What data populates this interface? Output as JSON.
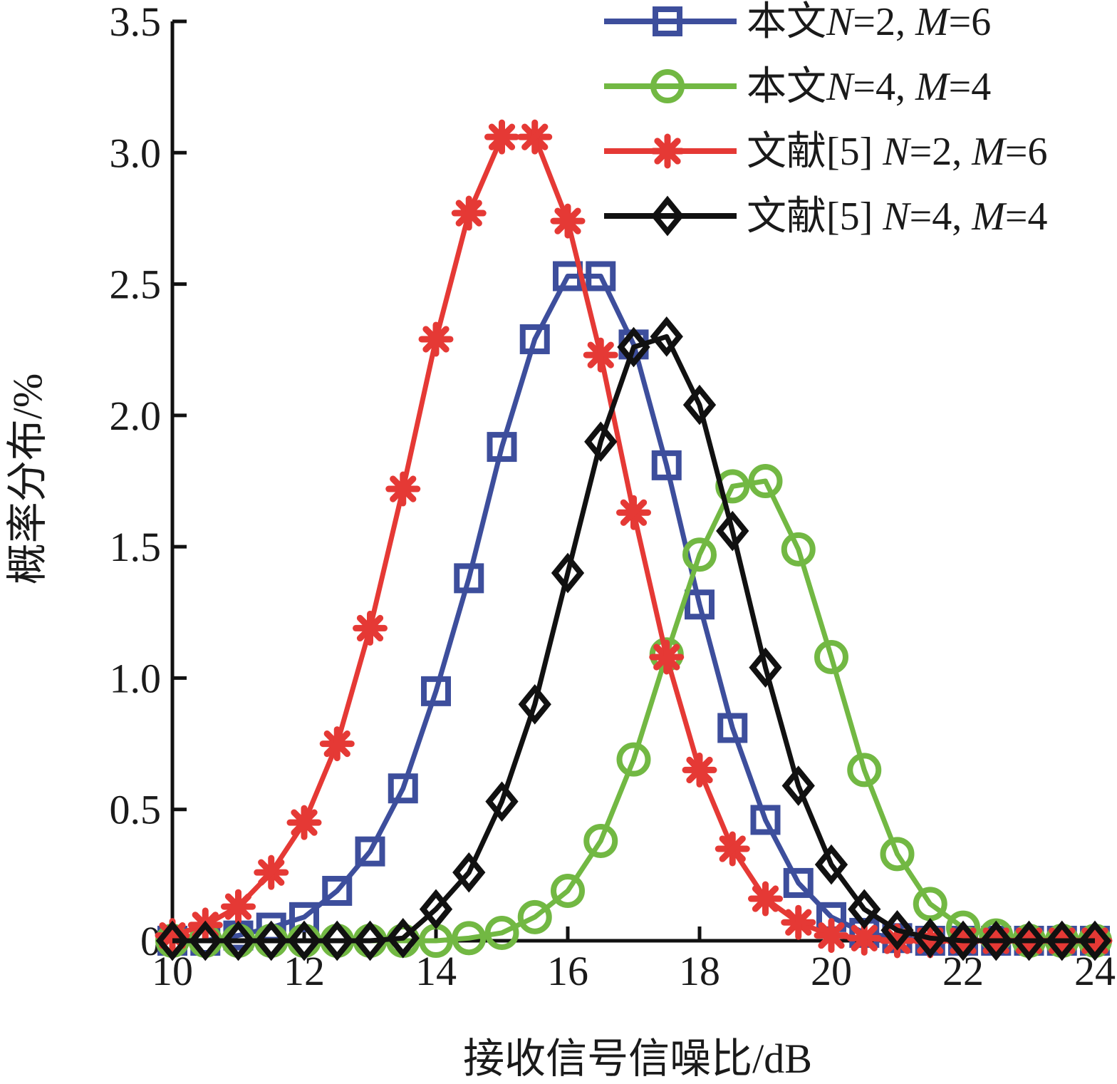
{
  "chart_data": {
    "type": "line",
    "title": "",
    "xlabel": "接收信号信噪比/dB",
    "ylabel": "概率分布/%",
    "xlim": [
      10,
      24
    ],
    "ylim": [
      0,
      3.5
    ],
    "xticks": [
      10,
      12,
      14,
      16,
      18,
      20,
      22,
      24
    ],
    "xtick_labels": [
      "10",
      "12",
      "14",
      "16",
      "18",
      "20",
      "22",
      "24"
    ],
    "yticks": [
      0,
      0.5,
      1.0,
      1.5,
      2.0,
      2.5,
      3.0,
      3.5
    ],
    "ytick_labels": [
      "0",
      "0.5",
      "1.0",
      "1.5",
      "2.0",
      "2.5",
      "3.0",
      "3.5"
    ],
    "grid": false,
    "legend_position": "top-right",
    "x": [
      10,
      10.5,
      11,
      11.5,
      12,
      12.5,
      13,
      13.5,
      14,
      14.5,
      15,
      15.5,
      16,
      16.5,
      17,
      17.5,
      18,
      18.5,
      19,
      19.5,
      20,
      20.5,
      21,
      21.5,
      22,
      22.5,
      23,
      23.5,
      24
    ],
    "series": [
      {
        "name": "本文N=2, M=6",
        "legend_parts": [
          [
            "本文",
            "n"
          ],
          [
            "N",
            "i"
          ],
          [
            "=2, ",
            "n"
          ],
          [
            "M",
            "i"
          ],
          [
            "=6",
            "n"
          ]
        ],
        "color": "#3d4e9c",
        "marker": "square",
        "values": [
          0,
          0,
          0.02,
          0.05,
          0.09,
          0.19,
          0.34,
          0.58,
          0.95,
          1.38,
          1.88,
          2.29,
          2.53,
          2.53,
          2.27,
          1.81,
          1.28,
          0.81,
          0.46,
          0.22,
          0.09,
          0.03,
          0.01,
          0,
          0,
          0,
          0,
          0,
          0
        ]
      },
      {
        "name": "本文N=4, M=4",
        "legend_parts": [
          [
            "本文",
            "n"
          ],
          [
            "N",
            "i"
          ],
          [
            "=4, ",
            "n"
          ],
          [
            "M",
            "i"
          ],
          [
            "=4",
            "n"
          ]
        ],
        "color": "#72b843",
        "marker": "circle",
        "values": [
          0,
          0,
          0,
          0,
          0,
          0,
          0,
          0,
          0,
          0.01,
          0.03,
          0.09,
          0.19,
          0.38,
          0.69,
          1.09,
          1.47,
          1.73,
          1.75,
          1.49,
          1.08,
          0.65,
          0.33,
          0.14,
          0.05,
          0.02,
          0,
          0,
          0
        ]
      },
      {
        "name": "文献[5] N=2, M=6",
        "legend_parts": [
          [
            "文献[5] ",
            "n"
          ],
          [
            "N",
            "i"
          ],
          [
            "=2, ",
            "n"
          ],
          [
            "M",
            "i"
          ],
          [
            "=6",
            "n"
          ]
        ],
        "color": "#e53935",
        "marker": "asterisk",
        "values": [
          0.02,
          0.06,
          0.13,
          0.26,
          0.45,
          0.75,
          1.19,
          1.72,
          2.29,
          2.77,
          3.06,
          3.06,
          2.74,
          2.23,
          1.63,
          1.08,
          0.65,
          0.35,
          0.16,
          0.07,
          0.02,
          0.01,
          0,
          0,
          0,
          0,
          0,
          0,
          0
        ]
      },
      {
        "name": "文献[5] N=4, M=4",
        "legend_parts": [
          [
            "文献[5] ",
            "n"
          ],
          [
            "N",
            "i"
          ],
          [
            "=4, ",
            "n"
          ],
          [
            "M",
            "i"
          ],
          [
            "=4",
            "n"
          ]
        ],
        "color": "#111111",
        "marker": "diamond",
        "values": [
          0,
          0,
          0,
          0,
          0,
          0,
          0,
          0.01,
          0.12,
          0.26,
          0.53,
          0.9,
          1.4,
          1.9,
          2.26,
          2.3,
          2.04,
          1.56,
          1.04,
          0.59,
          0.29,
          0.12,
          0.04,
          0.01,
          0,
          0,
          0,
          0,
          0
        ]
      }
    ]
  }
}
